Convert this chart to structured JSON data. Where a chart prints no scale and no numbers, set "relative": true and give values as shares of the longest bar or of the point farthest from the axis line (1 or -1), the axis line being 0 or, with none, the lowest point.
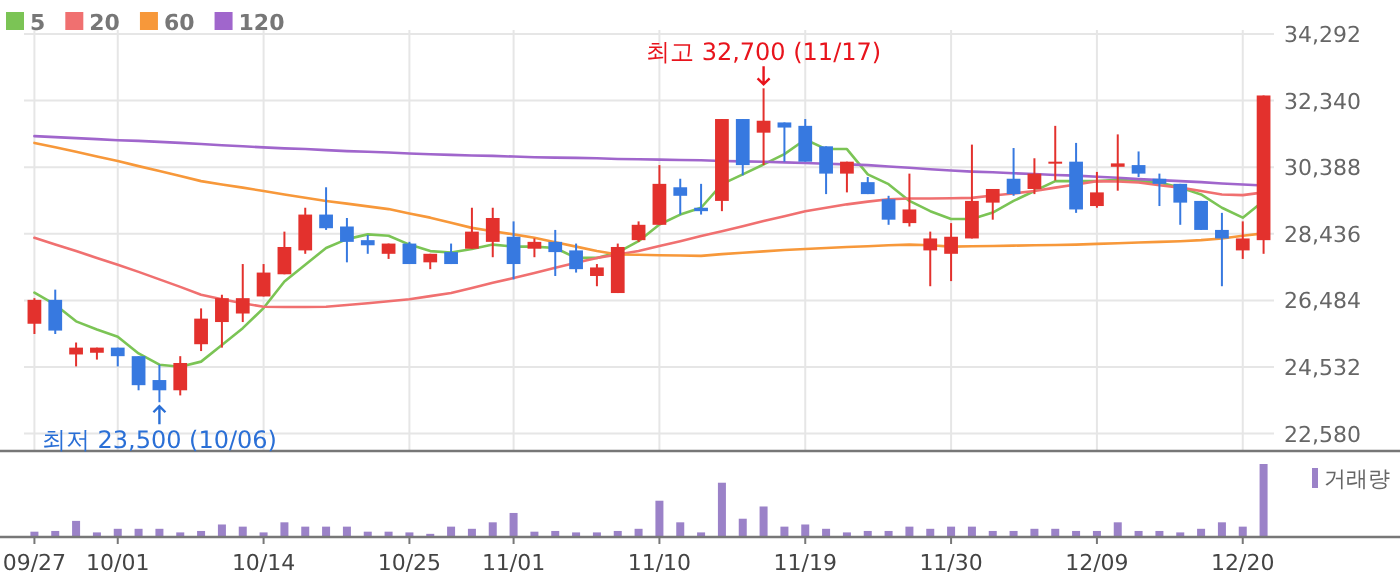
{
  "chart_data": [
    {
      "type": "candlestick",
      "categories": [
        null,
        null,
        null,
        null,
        null,
        null,
        null,
        null,
        null,
        null,
        null,
        null,
        null,
        null,
        null,
        null,
        null,
        null,
        null,
        null,
        null,
        null,
        null,
        null,
        null,
        null,
        null,
        null,
        null,
        null,
        null,
        null,
        null,
        null,
        null,
        null,
        null,
        null,
        null,
        null,
        null,
        null,
        null,
        null,
        null,
        null,
        null,
        null,
        null,
        null,
        null,
        null,
        null,
        null,
        null,
        null,
        null,
        null,
        null,
        null
      ],
      "ohlc": [
        [
          25800,
          26550,
          25500,
          26500
        ],
        [
          26500,
          26800,
          25500,
          25600
        ],
        [
          24900,
          25250,
          24550,
          25100
        ],
        [
          24950,
          25100,
          24750,
          25100
        ],
        [
          25100,
          25100,
          24550,
          24850
        ],
        [
          24850,
          24850,
          23850,
          24000
        ],
        [
          24150,
          24600,
          23500,
          23850
        ],
        [
          23850,
          24850,
          23700,
          24650
        ],
        [
          25200,
          26250,
          25000,
          25950
        ],
        [
          25850,
          26650,
          25100,
          26550
        ],
        [
          26100,
          27550,
          25850,
          26550
        ],
        [
          26600,
          27550,
          26600,
          27300
        ],
        [
          27250,
          28500,
          27250,
          28050
        ],
        [
          27950,
          29200,
          27850,
          29000
        ],
        [
          29000,
          29800,
          28550,
          28600
        ],
        [
          28650,
          28900,
          27600,
          28200
        ],
        [
          28250,
          28400,
          27850,
          28100
        ],
        [
          27850,
          28150,
          27700,
          28150
        ],
        [
          28150,
          28200,
          27550,
          27550
        ],
        [
          27600,
          27850,
          27400,
          27850
        ],
        [
          27900,
          28150,
          27550,
          27550
        ],
        [
          28000,
          29200,
          28000,
          28500
        ],
        [
          28200,
          29200,
          27750,
          28900
        ],
        [
          28350,
          28800,
          27100,
          27550
        ],
        [
          28000,
          28300,
          27750,
          28200
        ],
        [
          28200,
          28550,
          27200,
          27900
        ],
        [
          27950,
          28150,
          27300,
          27400
        ],
        [
          27200,
          27550,
          26900,
          27450
        ],
        [
          26700,
          28150,
          26700,
          28050
        ],
        [
          28250,
          28800,
          28200,
          28700
        ],
        [
          28700,
          30450,
          28700,
          29900
        ],
        [
          29800,
          30050,
          29000,
          29550
        ],
        [
          29200,
          29900,
          29000,
          29100
        ],
        [
          29400,
          31800,
          29100,
          31800
        ],
        [
          31800,
          31800,
          30150,
          30450
        ],
        [
          31400,
          32700,
          30450,
          31750
        ],
        [
          31700,
          31700,
          30550,
          31550
        ],
        [
          31600,
          31800,
          30550,
          30550
        ],
        [
          31000,
          31000,
          29600,
          30200
        ],
        [
          30200,
          30550,
          29650,
          30550
        ],
        [
          29950,
          30100,
          29600,
          29600
        ],
        [
          29450,
          29550,
          28700,
          28850
        ],
        [
          28750,
          30200,
          28650,
          29150
        ],
        [
          27950,
          28500,
          26900,
          28300
        ],
        [
          27850,
          28750,
          27050,
          28350
        ],
        [
          28300,
          31050,
          28300,
          29400
        ],
        [
          29350,
          29750,
          28850,
          29750
        ],
        [
          30050,
          30950,
          29550,
          29600
        ],
        [
          29750,
          30650,
          29600,
          30200
        ],
        [
          30500,
          31600,
          30000,
          30550
        ],
        [
          30550,
          31100,
          29050,
          29150
        ],
        [
          29250,
          30250,
          29200,
          29650
        ],
        [
          30400,
          31350,
          29700,
          30500
        ],
        [
          30450,
          30850,
          30100,
          30200
        ],
        [
          30050,
          30200,
          29250,
          29900
        ],
        [
          29900,
          29900,
          28700,
          29350
        ],
        [
          29400,
          29400,
          28550,
          28550
        ],
        [
          28550,
          29050,
          26900,
          28300
        ],
        [
          27950,
          28800,
          27700,
          28300
        ],
        [
          28250,
          32490,
          27850,
          32490
        ]
      ],
      "series": [
        {
          "name": "5",
          "color": "#7bc455",
          "type": "line",
          "values": [
            26710,
            26360,
            25870,
            25630,
            25420,
            24930,
            24600,
            24540,
            24690,
            25180,
            25670,
            26260,
            27040,
            27530,
            28020,
            28280,
            28420,
            28380,
            28120,
            27930,
            27890,
            27990,
            28120,
            28060,
            28060,
            28020,
            27730,
            27730,
            27890,
            28220,
            28710,
            29000,
            29200,
            29890,
            30180,
            30470,
            30770,
            31200,
            30920,
            30920,
            30180,
            29890,
            29400,
            29100,
            28870,
            28870,
            29060,
            29400,
            29690,
            29980,
            29980,
            29980,
            30020,
            29980,
            29940,
            29790,
            29590,
            29200,
            28910,
            29400
          ]
        },
        {
          "name": "20",
          "color": "#f07070",
          "type": "line",
          "values": [
            28320,
            28120,
            27930,
            27730,
            27530,
            27320,
            27100,
            26880,
            26650,
            26520,
            26400,
            26300,
            26290,
            26290,
            26300,
            26350,
            26400,
            26460,
            26520,
            26610,
            26700,
            26850,
            27000,
            27140,
            27290,
            27440,
            27590,
            27730,
            27830,
            27930,
            28080,
            28220,
            28370,
            28510,
            28660,
            28810,
            28950,
            29100,
            29200,
            29300,
            29380,
            29450,
            29470,
            29470,
            29480,
            29490,
            29560,
            29620,
            29690,
            29790,
            29880,
            29980,
            29970,
            29940,
            29860,
            29790,
            29690,
            29590,
            29570,
            29650
          ]
        },
        {
          "name": "60",
          "color": "#f7983a",
          "type": "line",
          "values": [
            31100,
            30970,
            30840,
            30700,
            30570,
            30420,
            30280,
            30130,
            29980,
            29880,
            29790,
            29690,
            29590,
            29490,
            29400,
            29320,
            29240,
            29160,
            29030,
            28910,
            28760,
            28610,
            28510,
            28420,
            28320,
            28190,
            28060,
            27930,
            27830,
            27820,
            27810,
            27800,
            27790,
            27840,
            27880,
            27920,
            27960,
            27990,
            28020,
            28050,
            28070,
            28100,
            28120,
            28100,
            28060,
            28070,
            28080,
            28090,
            28100,
            28110,
            28120,
            28140,
            28160,
            28180,
            28200,
            28220,
            28250,
            28300,
            28380,
            28450
          ]
        },
        {
          "name": "120",
          "color": "#a066cc",
          "type": "line",
          "values": [
            31300,
            31270,
            31240,
            31210,
            31180,
            31160,
            31130,
            31100,
            31070,
            31030,
            31000,
            30970,
            30940,
            30920,
            30890,
            30860,
            30840,
            30820,
            30790,
            30770,
            30750,
            30730,
            30720,
            30700,
            30680,
            30670,
            30660,
            30650,
            30630,
            30620,
            30610,
            30600,
            30590,
            30570,
            30560,
            30550,
            30530,
            30510,
            30490,
            30470,
            30450,
            30410,
            30370,
            30330,
            30290,
            30260,
            30240,
            30210,
            30190,
            30160,
            30140,
            30110,
            30080,
            30040,
            30010,
            29980,
            29950,
            29910,
            29880,
            29850
          ]
        }
      ],
      "ylim": [
        22100,
        34292
      ],
      "yticks": [
        {
          "value": 22580,
          "label": "22,580"
        },
        {
          "value": 24532,
          "label": "24,532"
        },
        {
          "value": 26484,
          "label": "26,484"
        },
        {
          "value": 28436,
          "label": "28,436"
        },
        {
          "value": 30388,
          "label": "30,388"
        },
        {
          "value": 32340,
          "label": "32,340"
        },
        {
          "value": 34292,
          "label": "34,292"
        }
      ],
      "grid": true,
      "legend": "top left",
      "tick_labels": "y",
      "marker": "none",
      "line_style": "solid",
      "annotations": [
        {
          "text": "최고 32,700 (11/17)",
          "y": 32700
        },
        {
          "text": "최저 23,500 (10/06)",
          "y": 23500
        }
      ]
    },
    {
      "type": "bar",
      "categories": [
        "09/27",
        null,
        null,
        null,
        "10/01",
        null,
        null,
        null,
        null,
        null,
        null,
        "10/14",
        null,
        null,
        null,
        null,
        null,
        null,
        "10/25",
        null,
        null,
        null,
        null,
        "11/01",
        null,
        null,
        null,
        null,
        null,
        null,
        "11/10",
        null,
        null,
        null,
        null,
        null,
        null,
        "11/19",
        null,
        null,
        null,
        null,
        null,
        null,
        "11/30",
        null,
        null,
        null,
        null,
        null,
        null,
        "12/09",
        null,
        null,
        null,
        null,
        null,
        null,
        "12/20",
        null
      ],
      "relative": true,
      "legend": "top right",
      "tick_labels": "x",
      "series": [
        {
          "name": "거래량",
          "color": "#9b82c8",
          "values": [
            0.06,
            0.07,
            0.21,
            0.05,
            0.1,
            0.1,
            0.1,
            0.05,
            0.07,
            0.16,
            0.13,
            0.05,
            0.19,
            0.13,
            0.13,
            0.13,
            0.06,
            0.06,
            0.05,
            0.03,
            0.13,
            0.1,
            0.19,
            0.32,
            0.06,
            0.07,
            0.05,
            0.05,
            0.07,
            0.1,
            0.49,
            0.19,
            0.05,
            0.74,
            0.24,
            0.41,
            0.13,
            0.16,
            0.1,
            0.05,
            0.07,
            0.07,
            0.13,
            0.1,
            0.13,
            0.13,
            0.07,
            0.07,
            0.1,
            0.1,
            0.07,
            0.07,
            0.19,
            0.07,
            0.07,
            0.05,
            0.1,
            0.19,
            0.13,
            1
          ]
        }
      ]
    }
  ]
}
